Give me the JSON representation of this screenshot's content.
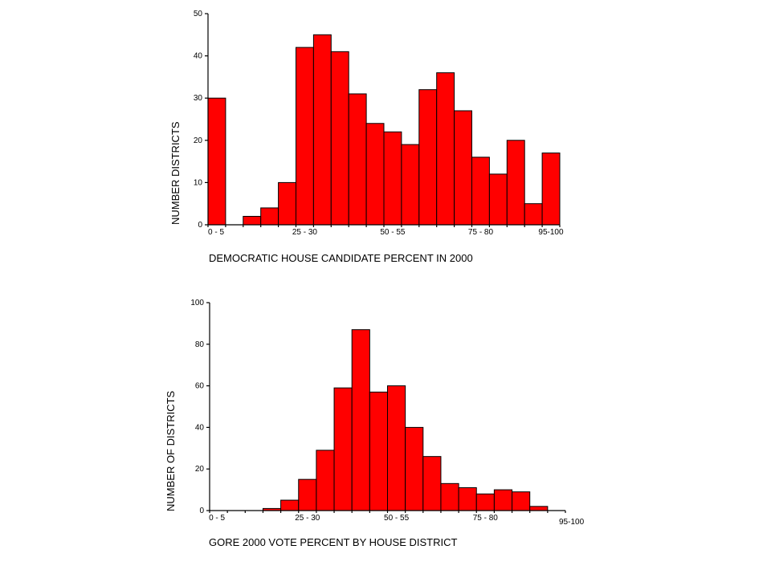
{
  "chart_data": [
    {
      "type": "bar",
      "title": "",
      "xlabel": "DEMOCRATIC HOUSE CANDIDATE PERCENT IN 2000",
      "ylabel": "NUMBER DISTRICTS",
      "ylim": [
        0,
        50
      ],
      "yticks": [
        0,
        10,
        20,
        30,
        40,
        50
      ],
      "x_tick_labels": [
        {
          "label": "0 - 5",
          "bin": 0
        },
        {
          "label": "25 - 30",
          "bin": 5
        },
        {
          "label": "50 - 55",
          "bin": 10
        },
        {
          "label": "75 - 80",
          "bin": 15
        },
        {
          "label": "95-100",
          "bin": 19
        }
      ],
      "categories": [
        "0 - 5",
        "5 - 10",
        "10 - 15",
        "15 - 20",
        "20 - 25",
        "25 - 30",
        "30 - 35",
        "35 - 40",
        "40 - 45",
        "45 - 50",
        "50 - 55",
        "55 - 60",
        "60 - 65",
        "65 - 70",
        "70 - 75",
        "75 - 80",
        "80 - 85",
        "85 - 90",
        "90 - 95",
        "95-100"
      ],
      "values": [
        30,
        0,
        2,
        4,
        10,
        42,
        45,
        41,
        31,
        24,
        22,
        19,
        32,
        36,
        27,
        16,
        12,
        20,
        5,
        17
      ],
      "grid": false
    },
    {
      "type": "bar",
      "title": "",
      "xlabel": "GORE 2000 VOTE PERCENT BY HOUSE DISTRICT",
      "ylabel": "NUMBER OF DISTRICTS",
      "ylim": [
        0,
        100
      ],
      "yticks": [
        0,
        20,
        40,
        60,
        80,
        100
      ],
      "x_tick_labels": [
        {
          "label": "0 - 5",
          "bin": 0
        },
        {
          "label": "25 - 30",
          "bin": 5
        },
        {
          "label": "50 - 55",
          "bin": 10
        },
        {
          "label": "75 - 80",
          "bin": 15
        },
        {
          "label": "95-100",
          "bin": 19
        }
      ],
      "categories": [
        "0 - 5",
        "5 - 10",
        "10 - 15",
        "15 - 20",
        "20 - 25",
        "25 - 30",
        "30 - 35",
        "35 - 40",
        "40 - 45",
        "45 - 50",
        "50 - 55",
        "55 - 60",
        "60 - 65",
        "65 - 70",
        "70 - 75",
        "75 - 80",
        "80 - 85",
        "85 - 90",
        "90 - 95",
        "95-100"
      ],
      "values": [
        0,
        0,
        0,
        1,
        5,
        15,
        29,
        59,
        87,
        57,
        60,
        40,
        26,
        13,
        11,
        8,
        10,
        9,
        2,
        0
      ],
      "grid": false
    }
  ],
  "colors": {
    "bar_fill": "#ff0000",
    "bar_stroke": "#000000",
    "background": "#ffffff"
  }
}
